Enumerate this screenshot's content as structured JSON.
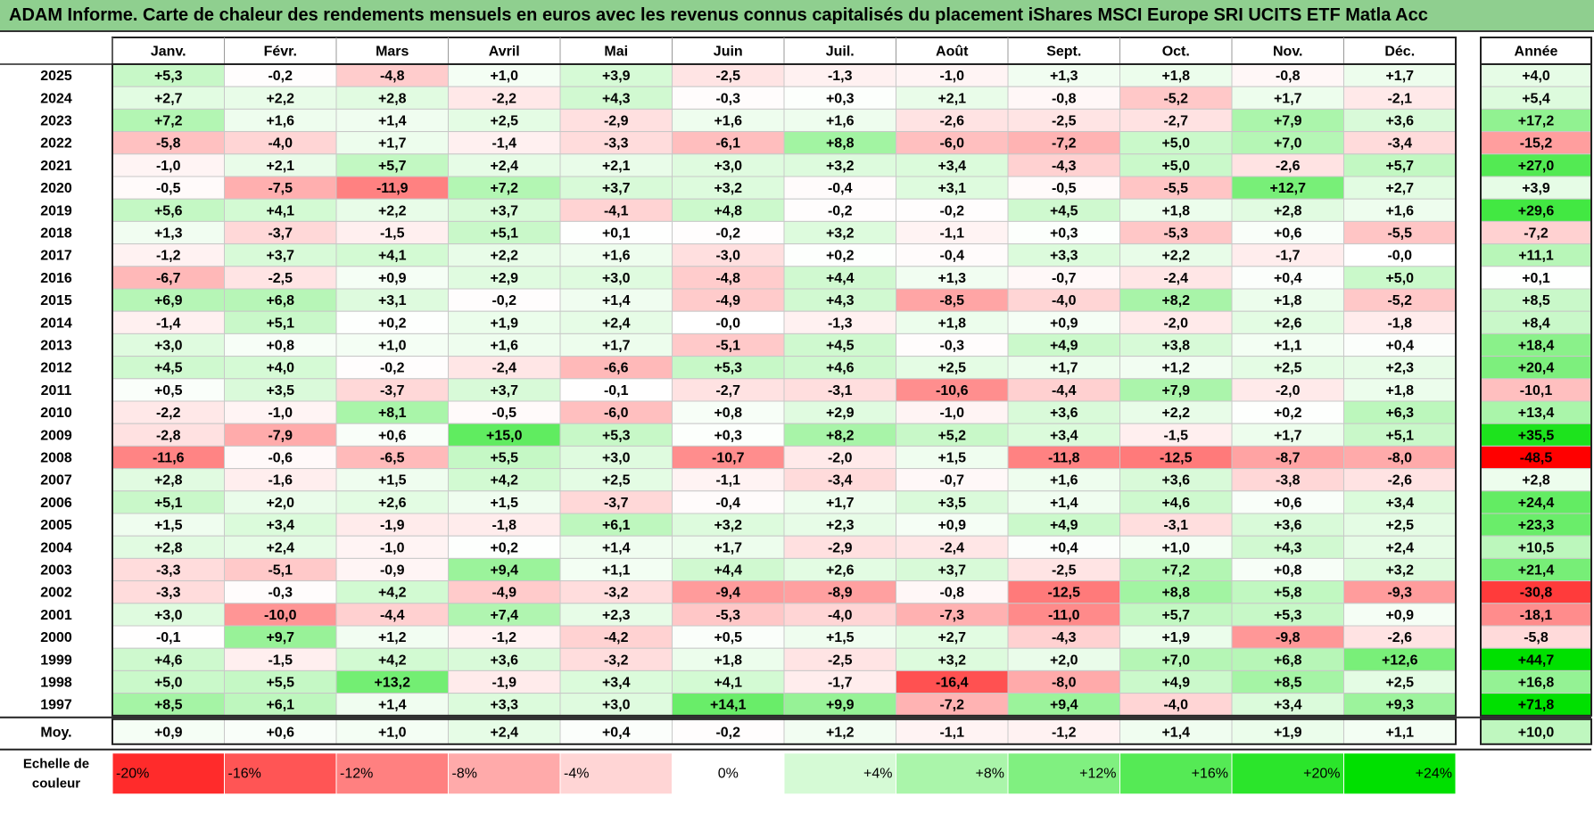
{
  "title": "ADAM Informe. Carte de chaleur des rendements mensuels en euros avec les revenus connus capitalisés du placement iShares MSCI Europe SRI UCITS ETF Matla Acc",
  "chart_data": {
    "type": "heatmap",
    "months": [
      "Janv.",
      "Févr.",
      "Mars",
      "Avril",
      "Mai",
      "Juin",
      "Juil.",
      "Août",
      "Sept.",
      "Oct.",
      "Nov.",
      "Déc."
    ],
    "year_header": "Année",
    "rows": [
      {
        "year": "2025",
        "values": [
          "+5,3",
          "-0,2",
          "-4,8",
          "+1,0",
          "+3,9",
          "-2,5",
          "-1,3",
          "-1,0",
          "+1,3",
          "+1,8",
          "-0,8",
          "+1,7"
        ],
        "annual": "+4,0"
      },
      {
        "year": "2024",
        "values": [
          "+2,7",
          "+2,2",
          "+2,8",
          "-2,2",
          "+4,3",
          "-0,3",
          "+0,3",
          "+2,1",
          "-0,8",
          "-5,2",
          "+1,7",
          "-2,1"
        ],
        "annual": "+5,4"
      },
      {
        "year": "2023",
        "values": [
          "+7,2",
          "+1,6",
          "+1,4",
          "+2,5",
          "-2,9",
          "+1,6",
          "+1,6",
          "-2,6",
          "-2,5",
          "-2,7",
          "+7,9",
          "+3,6"
        ],
        "annual": "+17,2"
      },
      {
        "year": "2022",
        "values": [
          "-5,8",
          "-4,0",
          "+1,7",
          "-1,4",
          "-3,3",
          "-6,1",
          "+8,8",
          "-6,0",
          "-7,2",
          "+5,0",
          "+7,0",
          "-3,4"
        ],
        "annual": "-15,2"
      },
      {
        "year": "2021",
        "values": [
          "-1,0",
          "+2,1",
          "+5,7",
          "+2,4",
          "+2,1",
          "+3,0",
          "+3,2",
          "+3,4",
          "-4,3",
          "+5,0",
          "-2,6",
          "+5,7"
        ],
        "annual": "+27,0"
      },
      {
        "year": "2020",
        "values": [
          "-0,5",
          "-7,5",
          "-11,9",
          "+7,2",
          "+3,7",
          "+3,2",
          "-0,4",
          "+3,1",
          "-0,5",
          "-5,5",
          "+12,7",
          "+2,7"
        ],
        "annual": "+3,9"
      },
      {
        "year": "2019",
        "values": [
          "+5,6",
          "+4,1",
          "+2,2",
          "+3,7",
          "-4,1",
          "+4,8",
          "-0,2",
          "-0,2",
          "+4,5",
          "+1,8",
          "+2,8",
          "+1,6"
        ],
        "annual": "+29,6"
      },
      {
        "year": "2018",
        "values": [
          "+1,3",
          "-3,7",
          "-1,5",
          "+5,1",
          "+0,1",
          "-0,2",
          "+3,2",
          "-1,1",
          "+0,3",
          "-5,3",
          "+0,6",
          "-5,5"
        ],
        "annual": "-7,2"
      },
      {
        "year": "2017",
        "values": [
          "-1,2",
          "+3,7",
          "+4,1",
          "+2,2",
          "+1,6",
          "-3,0",
          "+0,2",
          "-0,4",
          "+3,3",
          "+2,2",
          "-1,7",
          "-0,0"
        ],
        "annual": "+11,1"
      },
      {
        "year": "2016",
        "values": [
          "-6,7",
          "-2,5",
          "+0,9",
          "+2,9",
          "+3,0",
          "-4,8",
          "+4,4",
          "+1,3",
          "-0,7",
          "-2,4",
          "+0,4",
          "+5,0"
        ],
        "annual": "+0,1"
      },
      {
        "year": "2015",
        "values": [
          "+6,9",
          "+6,8",
          "+3,1",
          "-0,2",
          "+1,4",
          "-4,9",
          "+4,3",
          "-8,5",
          "-4,0",
          "+8,2",
          "+1,8",
          "-5,2"
        ],
        "annual": "+8,5"
      },
      {
        "year": "2014",
        "values": [
          "-1,4",
          "+5,1",
          "+0,2",
          "+1,9",
          "+2,4",
          "-0,0",
          "-1,3",
          "+1,8",
          "+0,9",
          "-2,0",
          "+2,6",
          "-1,8"
        ],
        "annual": "+8,4"
      },
      {
        "year": "2013",
        "values": [
          "+3,0",
          "+0,8",
          "+1,0",
          "+1,6",
          "+1,7",
          "-5,1",
          "+4,5",
          "-0,3",
          "+4,9",
          "+3,8",
          "+1,1",
          "+0,4"
        ],
        "annual": "+18,4"
      },
      {
        "year": "2012",
        "values": [
          "+4,5",
          "+4,0",
          "-0,2",
          "-2,4",
          "-6,6",
          "+5,3",
          "+4,6",
          "+2,5",
          "+1,7",
          "+1,2",
          "+2,5",
          "+2,3"
        ],
        "annual": "+20,4"
      },
      {
        "year": "2011",
        "values": [
          "+0,5",
          "+3,5",
          "-3,7",
          "+3,7",
          "-0,1",
          "-2,7",
          "-3,1",
          "-10,6",
          "-4,4",
          "+7,9",
          "-2,0",
          "+1,8"
        ],
        "annual": "-10,1"
      },
      {
        "year": "2010",
        "values": [
          "-2,2",
          "-1,0",
          "+8,1",
          "-0,5",
          "-6,0",
          "+0,8",
          "+2,9",
          "-1,0",
          "+3,6",
          "+2,2",
          "+0,2",
          "+6,3"
        ],
        "annual": "+13,4"
      },
      {
        "year": "2009",
        "values": [
          "-2,8",
          "-7,9",
          "+0,6",
          "+15,0",
          "+5,3",
          "+0,3",
          "+8,2",
          "+5,2",
          "+3,4",
          "-1,5",
          "+1,7",
          "+5,1"
        ],
        "annual": "+35,5"
      },
      {
        "year": "2008",
        "values": [
          "-11,6",
          "-0,6",
          "-6,5",
          "+5,5",
          "+3,0",
          "-10,7",
          "-2,0",
          "+1,5",
          "-11,8",
          "-12,5",
          "-8,7",
          "-8,0"
        ],
        "annual": "-48,5"
      },
      {
        "year": "2007",
        "values": [
          "+2,8",
          "-1,6",
          "+1,5",
          "+4,2",
          "+2,5",
          "-1,1",
          "-3,4",
          "-0,7",
          "+1,6",
          "+3,6",
          "-3,8",
          "-2,6"
        ],
        "annual": "+2,8"
      },
      {
        "year": "2006",
        "values": [
          "+5,1",
          "+2,0",
          "+2,6",
          "+1,5",
          "-3,7",
          "-0,4",
          "+1,7",
          "+3,5",
          "+1,4",
          "+4,6",
          "+0,6",
          "+3,4"
        ],
        "annual": "+24,4"
      },
      {
        "year": "2005",
        "values": [
          "+1,5",
          "+3,4",
          "-1,9",
          "-1,8",
          "+6,1",
          "+3,2",
          "+2,3",
          "+0,9",
          "+4,9",
          "-3,1",
          "+3,6",
          "+2,5"
        ],
        "annual": "+23,3"
      },
      {
        "year": "2004",
        "values": [
          "+2,8",
          "+2,4",
          "-1,0",
          "+0,2",
          "+1,4",
          "+1,7",
          "-2,9",
          "-2,4",
          "+0,4",
          "+1,0",
          "+4,3",
          "+2,4"
        ],
        "annual": "+10,5"
      },
      {
        "year": "2003",
        "values": [
          "-3,3",
          "-5,1",
          "-0,9",
          "+9,4",
          "+1,1",
          "+4,4",
          "+2,6",
          "+3,7",
          "-2,5",
          "+7,2",
          "+0,8",
          "+3,2"
        ],
        "annual": "+21,4"
      },
      {
        "year": "2002",
        "values": [
          "-3,3",
          "-0,3",
          "+4,2",
          "-4,9",
          "-3,2",
          "-9,4",
          "-8,9",
          "-0,8",
          "-12,5",
          "+8,8",
          "+5,8",
          "-9,3"
        ],
        "annual": "-30,8"
      },
      {
        "year": "2001",
        "values": [
          "+3,0",
          "-10,0",
          "-4,4",
          "+7,4",
          "+2,3",
          "-5,3",
          "-4,0",
          "-7,3",
          "-11,0",
          "+5,7",
          "+5,3",
          "+0,9"
        ],
        "annual": "-18,1"
      },
      {
        "year": "2000",
        "values": [
          "-0,1",
          "+9,7",
          "+1,2",
          "-1,2",
          "-4,2",
          "+0,5",
          "+1,5",
          "+2,7",
          "-4,3",
          "+1,9",
          "-9,8",
          "-2,6"
        ],
        "annual": "-5,8"
      },
      {
        "year": "1999",
        "values": [
          "+4,6",
          "-1,5",
          "+4,2",
          "+3,6",
          "-3,2",
          "+1,8",
          "-2,5",
          "+3,2",
          "+2,0",
          "+7,0",
          "+6,8",
          "+12,6"
        ],
        "annual": "+44,7"
      },
      {
        "year": "1998",
        "values": [
          "+5,0",
          "+5,5",
          "+13,2",
          "-1,9",
          "+3,4",
          "+4,1",
          "-1,7",
          "-16,4",
          "-8,0",
          "+4,9",
          "+8,5",
          "+2,5"
        ],
        "annual": "+16,8"
      },
      {
        "year": "1997",
        "values": [
          "+8,5",
          "+6,1",
          "+1,4",
          "+3,3",
          "+3,0",
          "+14,1",
          "+9,9",
          "-7,2",
          "+9,4",
          "-4,0",
          "+3,4",
          "+9,3"
        ],
        "annual": "+71,8"
      }
    ],
    "average": {
      "label": "Moy.",
      "values": [
        "+0,9",
        "+0,6",
        "+1,0",
        "+2,4",
        "+0,4",
        "-0,2",
        "+1,2",
        "-1,1",
        "-1,2",
        "+1,4",
        "+1,9",
        "+1,1"
      ],
      "annual": "+10,0"
    },
    "scale": {
      "label_line1": "Echelle de",
      "label_line2": "couleur",
      "labels": [
        "-20%",
        "-16%",
        "-12%",
        "-8%",
        "-4%",
        "0%",
        "+4%",
        "+8%",
        "+12%",
        "+16%",
        "+20%",
        "+24%"
      ],
      "levels": [
        -20,
        -16,
        -12,
        -8,
        -4,
        0,
        4,
        8,
        12,
        16,
        20,
        24
      ]
    },
    "colors": {
      "negative": "#ff0000",
      "neutral": "#ffffff",
      "positive": "#00e000",
      "title_bg": "#8fcf8f"
    },
    "color_max": {
      "monthly": 24,
      "annual": 40
    }
  }
}
